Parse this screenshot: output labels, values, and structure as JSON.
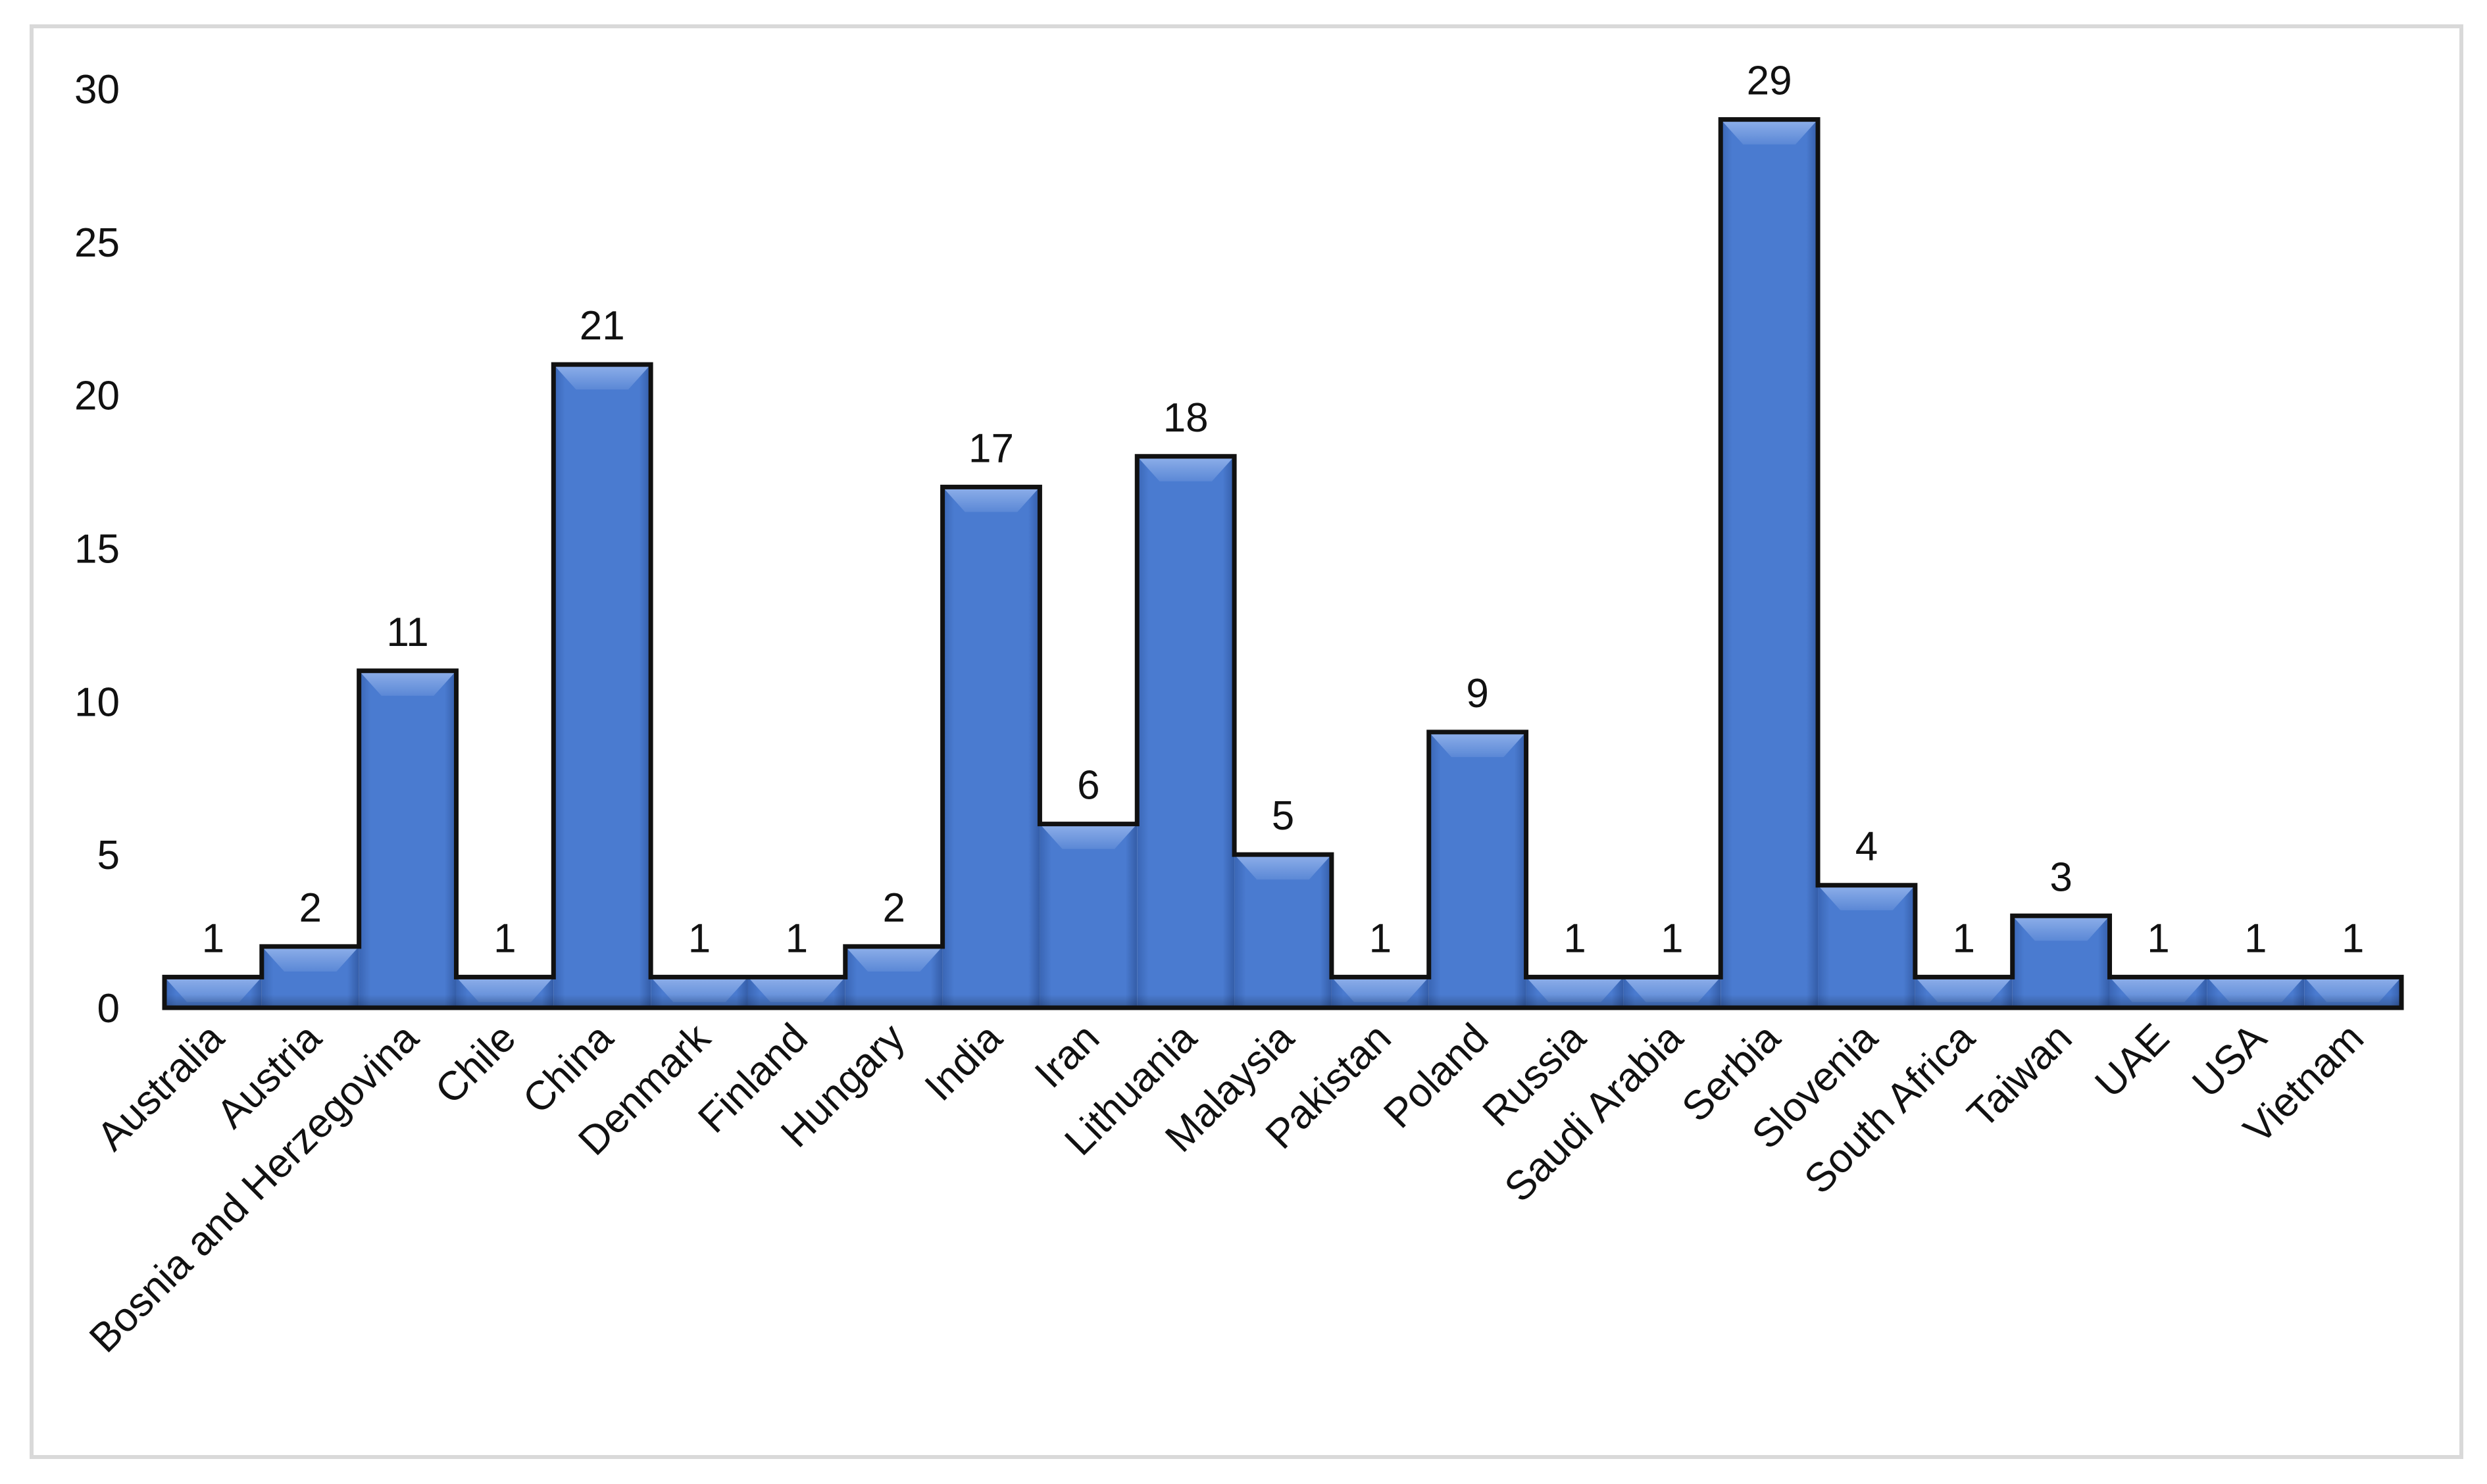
{
  "chart_data": {
    "type": "bar",
    "categories": [
      "Australia",
      "Austria",
      "Bosnia and Herzegovina",
      "Chile",
      "China",
      "Denmark",
      "Finland",
      "Hungary",
      "India",
      "Iran",
      "Lithuania",
      "Malaysia",
      "Pakistan",
      "Poland",
      "Russia",
      "Saudi Arabia",
      "Serbia",
      "Slovenia",
      "South Africa",
      "Taiwan",
      "UAE",
      "USA",
      "Vietnam"
    ],
    "values": [
      1,
      2,
      11,
      1,
      21,
      1,
      1,
      2,
      17,
      6,
      18,
      5,
      1,
      9,
      1,
      1,
      29,
      4,
      1,
      3,
      1,
      1,
      1
    ],
    "title": "",
    "xlabel": "",
    "ylabel": "",
    "ylim": [
      0,
      30
    ],
    "yticks": [
      0,
      5,
      10,
      15,
      20,
      25,
      30
    ],
    "grid": false,
    "legend": "none",
    "data_labels": true,
    "bar_color": "#4a7bd0",
    "bar_highlight": "#7ea3e6",
    "outline_color": "#111111",
    "frame_color": "#d9d9d9"
  }
}
